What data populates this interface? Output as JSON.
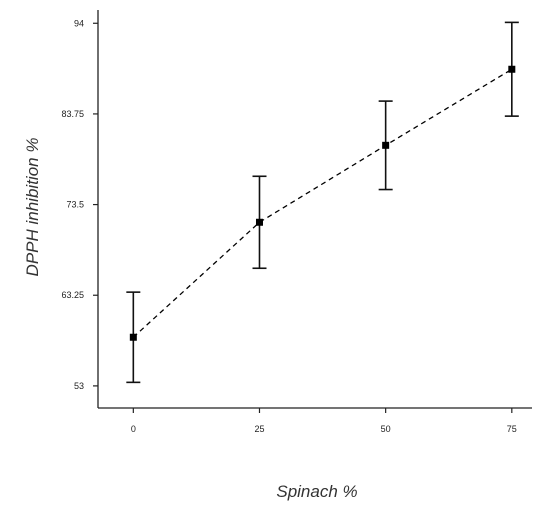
{
  "chart_data": {
    "type": "line",
    "title": "",
    "xlabel": "Spinach %",
    "ylabel": "DPPH inhibition %",
    "x": [
      0,
      25,
      50,
      75
    ],
    "x_tick_labels": [
      "0",
      "25",
      "50",
      "75"
    ],
    "y_tick_values": [
      53,
      63.25,
      73.5,
      83.75,
      94
    ],
    "y_tick_labels": [
      "53",
      "63.25",
      "73.5",
      "83.75",
      "94"
    ],
    "xlim": [
      -7,
      79
    ],
    "ylim": [
      50.5,
      95.5
    ],
    "series": [
      {
        "values": [
          58.5,
          71.5,
          80.2,
          88.8
        ],
        "error": [
          5.1,
          5.2,
          5.0,
          5.3
        ],
        "line_style": "dashed",
        "marker": "square",
        "color": "#000000"
      }
    ],
    "grid": false,
    "legend": "none"
  }
}
